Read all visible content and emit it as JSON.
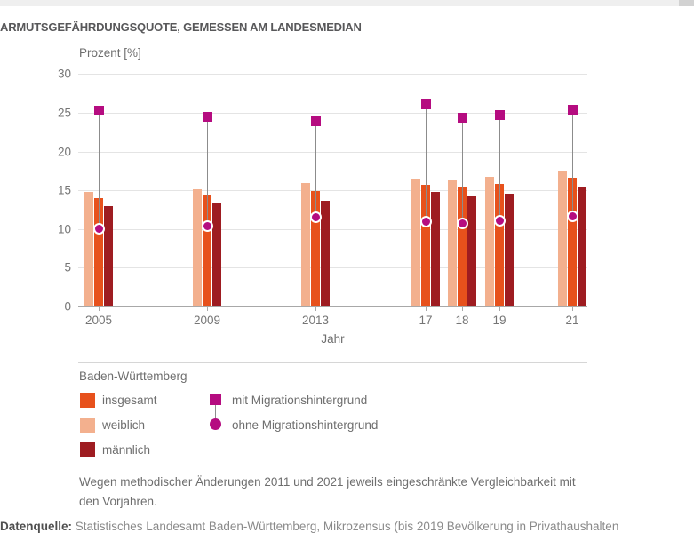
{
  "chart_data": {
    "type": "bar",
    "title": "ARMUTSGEFÄHRDUNGSQUOTE, GEMESSEN AM LANDESMEDIAN",
    "ylabel": "Prozent [%]",
    "xlabel": "Jahr",
    "ylim": [
      0,
      30
    ],
    "yticks": [
      0,
      5,
      10,
      15,
      20,
      25,
      30
    ],
    "grid": true,
    "legend_position": "bottom",
    "categories": [
      "2005",
      "2009",
      "2013",
      "17",
      "18",
      "19",
      "21"
    ],
    "series": [
      {
        "name": "weiblich",
        "type": "bar",
        "color": "#f3b08e",
        "values": [
          14.8,
          15.2,
          16.0,
          16.5,
          16.3,
          16.7,
          17.5
        ]
      },
      {
        "name": "insgesamt",
        "type": "bar",
        "color": "#e7511c",
        "values": [
          14.0,
          14.3,
          14.9,
          15.7,
          15.4,
          15.8,
          16.6
        ]
      },
      {
        "name": "männlich",
        "type": "bar",
        "color": "#9e1c21",
        "values": [
          13.0,
          13.3,
          13.7,
          14.8,
          14.2,
          14.6,
          15.4
        ]
      },
      {
        "name": "mit Migrationshintergrund",
        "type": "point-square",
        "color": "#b50c80",
        "values": [
          25.4,
          24.6,
          24.0,
          26.1,
          24.4,
          24.8,
          25.5
        ]
      },
      {
        "name": "ohne Migrationshintergrund",
        "type": "point-circle",
        "color": "#b50c80",
        "values": [
          10.1,
          10.4,
          11.6,
          11.0,
          10.8,
          11.1,
          11.7
        ]
      }
    ]
  },
  "legend": {
    "group_label": "Baden-Württemberg",
    "bar_items": [
      {
        "label": "insgesamt",
        "color": "#e7511c"
      },
      {
        "label": "weiblich",
        "color": "#f3b08e"
      },
      {
        "label": "männlich",
        "color": "#9e1c21"
      }
    ],
    "marker_items": [
      {
        "label": "mit Migrationshintergrund",
        "shape": "square",
        "color": "#b50c80"
      },
      {
        "label": "ohne Migrationshintergrund",
        "shape": "circle",
        "color": "#b50c80"
      }
    ]
  },
  "footnote": "Wegen methodischer Änderungen 2011 und 2021 jeweils eingeschränkte Vergleichbarkeit mit den Vorjahren.",
  "source": {
    "label": "Datenquelle:",
    "text": " Statistisches Landesamt Baden-Württemberg, Mikrozensus (bis 2019 Bevölkerung in Privathaushalten"
  }
}
